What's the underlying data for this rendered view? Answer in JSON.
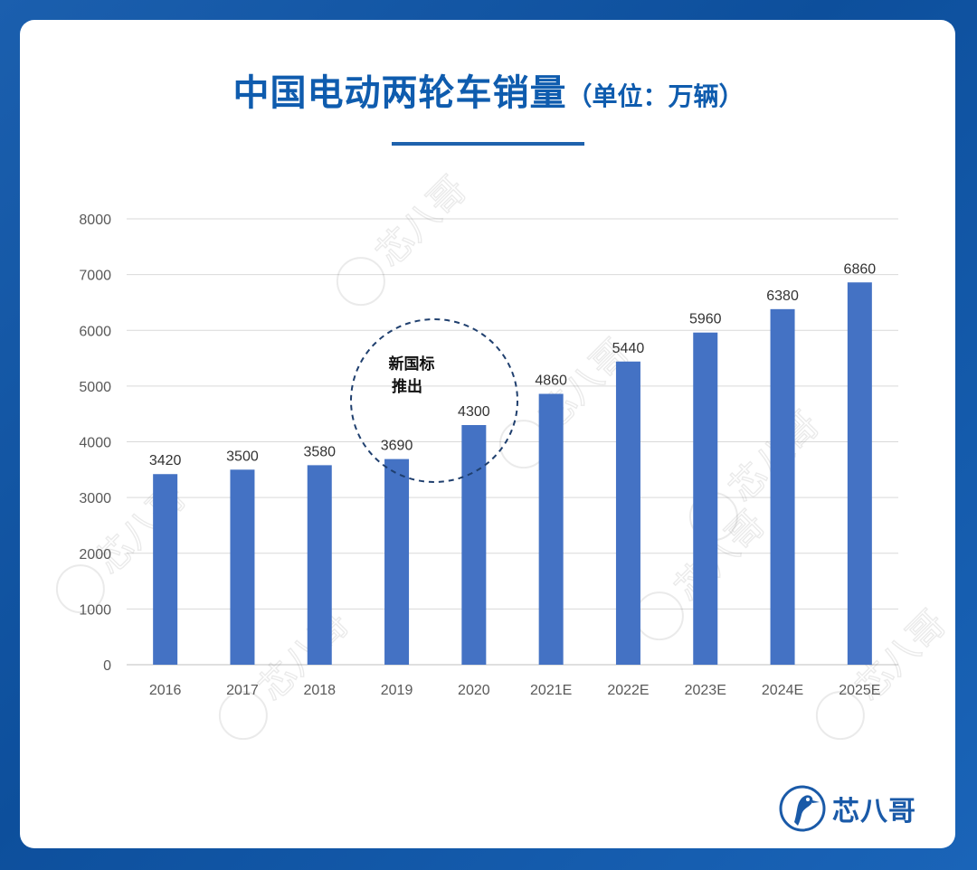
{
  "title": {
    "main": "中国电动两轮车销量",
    "sub": "（单位：万辆）"
  },
  "annotation": "新国标推出",
  "annotation_lines": [
    "新国标",
    "推出"
  ],
  "watermark": "芯八哥",
  "logo_text": "芯八哥",
  "colors": {
    "bar": "#4472c4",
    "title": "#0f5cae",
    "background": "#0d4f9c",
    "grid": "#d9d9d9",
    "annotation_circle": "#1f3f6e"
  },
  "chart_data": {
    "type": "bar",
    "categories": [
      "2016",
      "2017",
      "2018",
      "2019",
      "2020",
      "2021E",
      "2022E",
      "2023E",
      "2024E",
      "2025E"
    ],
    "values": [
      3420,
      3500,
      3580,
      3690,
      4300,
      4860,
      5440,
      5960,
      6380,
      6860
    ],
    "data_labels": [
      "3420",
      "3500",
      "3580",
      "3690",
      "4300",
      "4860",
      "5440",
      "5960",
      "6380",
      "6860"
    ],
    "yticks": [
      0,
      1000,
      2000,
      3000,
      4000,
      5000,
      6000,
      7000,
      8000
    ],
    "ylim": [
      0,
      8000
    ],
    "grid": true,
    "legend": "none",
    "title": "中国电动两轮车销量（单位：万辆）",
    "xlabel": "",
    "ylabel": ""
  }
}
